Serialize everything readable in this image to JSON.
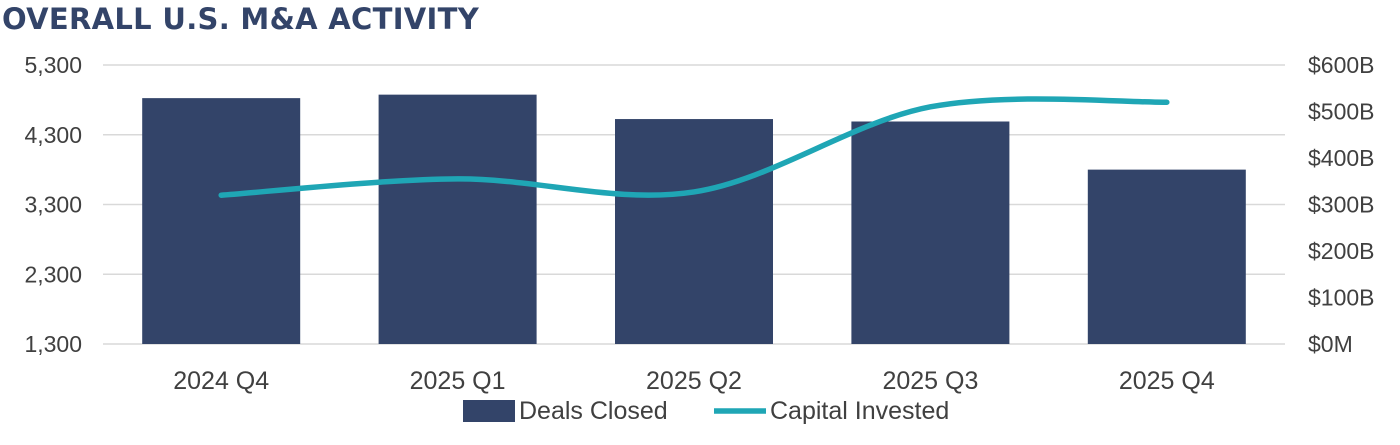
{
  "title": "OVERALL U.S. M&A ACTIVITY",
  "colors": {
    "bars": "#334469",
    "line": "#1FA6B5",
    "grid": "#D9D9D9",
    "title": "#334469"
  },
  "chart_data": {
    "type": "bar",
    "title": "OVERALL U.S. M&A ACTIVITY",
    "categories": [
      "2024 Q4",
      "2025 Q1",
      "2025 Q2",
      "2025 Q3",
      "2025 Q4"
    ],
    "series": [
      {
        "name": "Deals Closed",
        "type": "bar",
        "axis": "left",
        "values": [
          4825,
          4875,
          4525,
          4490,
          3800
        ]
      },
      {
        "name": "Capital Invested",
        "type": "line",
        "axis": "right",
        "smooth": true,
        "values": [
          320,
          355,
          327,
          510,
          520
        ]
      }
    ],
    "y_left": {
      "ylim": [
        1300,
        5300
      ],
      "ticks": [
        1300,
        2300,
        3300,
        4300,
        5300
      ],
      "tick_labels": [
        "1,300",
        "2,300",
        "3,300",
        "4,300",
        "5,300"
      ]
    },
    "y_right": {
      "ylim": [
        0,
        600
      ],
      "ticks": [
        0,
        100,
        200,
        300,
        400,
        500,
        600
      ],
      "tick_labels": [
        "$0M",
        "$100B",
        "$200B",
        "$300B",
        "$400B",
        "$500B",
        "$600B"
      ]
    },
    "xlabel": "",
    "ylabel": "",
    "grid": true,
    "legend": "bottom-center"
  }
}
